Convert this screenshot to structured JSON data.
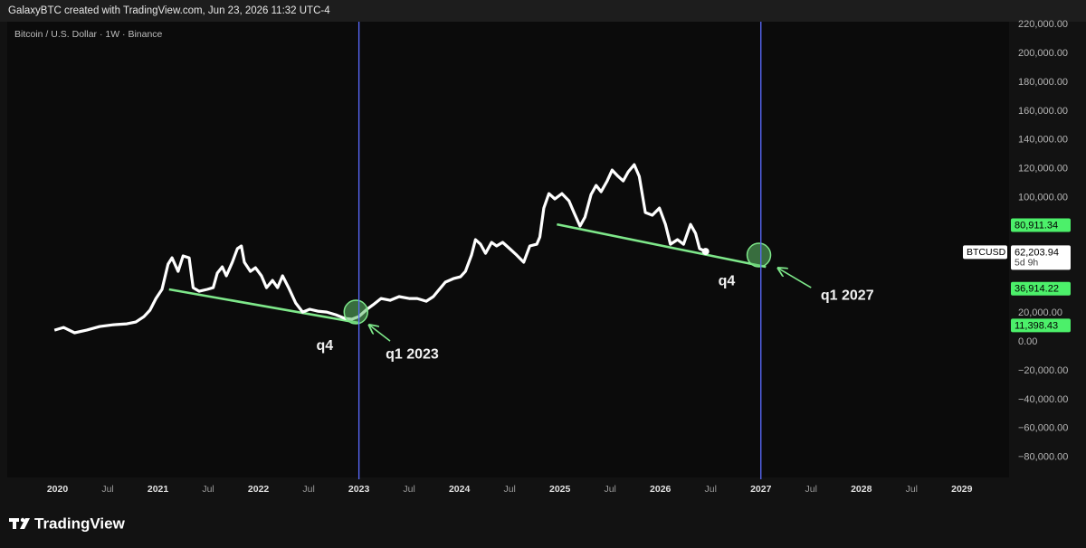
{
  "chart_data": {
    "type": "line",
    "attribution": "GalaxyBTC created with TradingView.com, Jun 23, 2026 11:32 UTC-4",
    "title": "Bitcoin / U.S. Dollar · 1W · Binance",
    "brand": "TradingView",
    "xlim": [
      2019.5,
      2029.47
    ],
    "ylim": [
      -94000,
      222000
    ],
    "xticks": [
      2020,
      {
        "value": 2020.5,
        "label": "Jul"
      },
      2021,
      {
        "value": 2021.5,
        "label": "Jul"
      },
      2022,
      {
        "value": 2022.5,
        "label": "Jul"
      },
      2023,
      {
        "value": 2023.5,
        "label": "Jul"
      },
      2024,
      {
        "value": 2024.5,
        "label": "Jul"
      },
      2025,
      {
        "value": 2025.5,
        "label": "Jul"
      },
      2026,
      {
        "value": 2026.5,
        "label": "Jul"
      },
      2027,
      {
        "value": 2027.5,
        "label": "Jul"
      },
      2028,
      {
        "value": 2028.5,
        "label": "Jul"
      },
      2029
    ],
    "yticks": [
      {
        "value": 220000,
        "label": "220,000.00"
      },
      {
        "value": 200000,
        "label": "200,000.00"
      },
      {
        "value": 180000,
        "label": "180,000.00"
      },
      {
        "value": 160000,
        "label": "160,000.00"
      },
      {
        "value": 140000,
        "label": "140,000.00"
      },
      {
        "value": 120000,
        "label": "120,000.00"
      },
      {
        "value": 100000,
        "label": "100,000.00"
      },
      {
        "value": 20000,
        "label": "20,000.00"
      },
      {
        "value": 0,
        "label": "0.00"
      },
      {
        "value": -20000,
        "label": "−20,000.00"
      },
      {
        "value": -40000,
        "label": "−40,000.00"
      },
      {
        "value": -60000,
        "label": "−60,000.00"
      },
      {
        "value": -80000,
        "label": "−80,000.00"
      }
    ],
    "x": [
      2019.97,
      2020.06,
      2020.17,
      2020.29,
      2020.42,
      2020.56,
      2020.69,
      2020.78,
      2020.86,
      2020.92,
      2020.98,
      2021.04,
      2021.1,
      2021.14,
      2021.2,
      2021.25,
      2021.31,
      2021.35,
      2021.41,
      2021.49,
      2021.55,
      2021.59,
      2021.64,
      2021.68,
      2021.74,
      2021.79,
      2021.83,
      2021.86,
      2021.92,
      2021.97,
      2022.03,
      2022.08,
      2022.14,
      2022.19,
      2022.24,
      2022.3,
      2022.37,
      2022.44,
      2022.51,
      2022.59,
      2022.68,
      2022.77,
      2022.86,
      2022.93,
      2023.0,
      2023.08,
      2023.14,
      2023.22,
      2023.31,
      2023.4,
      2023.5,
      2023.58,
      2023.67,
      2023.74,
      2023.8,
      2023.86,
      2023.94,
      2024.01,
      2024.06,
      2024.12,
      2024.16,
      2024.21,
      2024.26,
      2024.32,
      2024.37,
      2024.43,
      2024.5,
      2024.57,
      2024.64,
      2024.7,
      2024.77,
      2024.8,
      2024.84,
      2024.89,
      2024.95,
      2025.02,
      2025.09,
      2025.14,
      2025.2,
      2025.25,
      2025.31,
      2025.36,
      2025.41,
      2025.47,
      2025.52,
      2025.58,
      2025.63,
      2025.68,
      2025.74,
      2025.79,
      2025.85,
      2025.92,
      2025.99,
      2026.05,
      2026.1,
      2026.17,
      2026.23,
      2026.3,
      2026.35,
      2026.39,
      2026.45
    ],
    "series": [
      {
        "name": "BTCUSD",
        "color": "#ffffff",
        "values": [
          8150,
          10000,
          6300,
          8150,
          10660,
          11900,
          12500,
          13800,
          17500,
          22000,
          30100,
          36400,
          53900,
          58300,
          48900,
          59600,
          58300,
          37600,
          35100,
          36400,
          37600,
          47700,
          52000,
          45800,
          55200,
          64600,
          66500,
          55200,
          48900,
          51400,
          45800,
          37600,
          42600,
          37600,
          45800,
          37600,
          27000,
          20700,
          22600,
          21300,
          20700,
          18800,
          16300,
          15700,
          17600,
          22600,
          25700,
          30100,
          28800,
          31400,
          30100,
          30100,
          28200,
          31400,
          36400,
          41400,
          43900,
          45100,
          48900,
          60200,
          70900,
          67700,
          61400,
          69000,
          66500,
          69000,
          64600,
          60200,
          55200,
          66500,
          67700,
          72700,
          92800,
          102800,
          99100,
          102800,
          97800,
          89700,
          80300,
          86500,
          102200,
          108500,
          104100,
          111600,
          119100,
          114700,
          111600,
          117900,
          122900,
          114700,
          89700,
          87800,
          92800,
          81500,
          67700,
          70900,
          67700,
          81500,
          75200,
          64600,
          62700
        ]
      }
    ],
    "last_price": {
      "value": 62203.94,
      "label": "62,203.94",
      "countdown": "5d 9h"
    },
    "price_labels": [
      {
        "value": 80911.34,
        "label": "80,911.34"
      },
      {
        "value": 36914.22,
        "label": "36,914.22"
      },
      {
        "value": 11398.43,
        "label": "11,398.43"
      }
    ],
    "price_label_color": "#4cf06a",
    "trendlines": [
      {
        "color": "#7ee88a",
        "x": [
          2021.11,
          2023.0
        ],
        "values": [
          36400,
          13200
        ]
      },
      {
        "color": "#7ee88a",
        "x": [
          2024.97,
          2027.05
        ],
        "values": [
          81500,
          52000
        ]
      }
    ],
    "vlines": {
      "color": "#5b6cff",
      "x": [
        2023.0,
        2027.0
      ]
    },
    "markers": {
      "color": "#5fbf6a",
      "x": [
        2022.97,
        2026.98
      ],
      "values": [
        20700,
        60200
      ]
    },
    "arrows": [
      {
        "x": [
          2023.31,
          2023.11
        ],
        "values": [
          600,
          11300
        ]
      },
      {
        "x": [
          2027.5,
          2027.18
        ],
        "values": [
          37600,
          50800
        ]
      }
    ],
    "annotations": [
      {
        "text": "q4",
        "x": 2022.66,
        "value": -3100
      },
      {
        "text": "q1 2023",
        "x": 2023.53,
        "value": -8800
      },
      {
        "text": "q4",
        "x": 2026.66,
        "value": 42000
      },
      {
        "text": "q1 2027",
        "x": 2027.86,
        "value": 32000
      }
    ]
  }
}
